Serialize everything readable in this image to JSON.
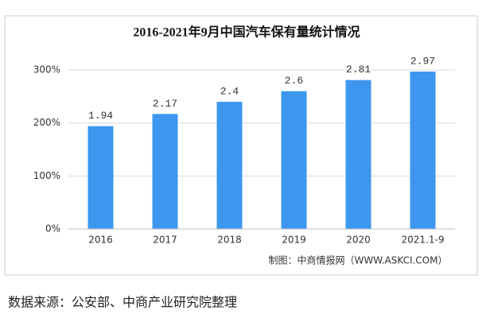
{
  "chart_data": {
    "type": "bar",
    "title": "2016-2021年9月中国汽车保有量统计情况",
    "categories": [
      "2016",
      "2017",
      "2018",
      "2019",
      "2020",
      "2021.1-9"
    ],
    "values": [
      1.94,
      2.17,
      2.4,
      2.6,
      2.81,
      2.97
    ],
    "color": "#3d97ef",
    "ylim": [
      0,
      3
    ],
    "yticks": [
      {
        "value": 0,
        "label": "0%"
      },
      {
        "value": 1,
        "label": "100%"
      },
      {
        "value": 2,
        "label": "200%"
      },
      {
        "value": 3,
        "label": "300%"
      }
    ],
    "grid": true,
    "credit": "制图：中商情报网（WWW.ASKCI.COM）"
  },
  "source_note": "数据来源：公安部、中商产业研究院整理"
}
